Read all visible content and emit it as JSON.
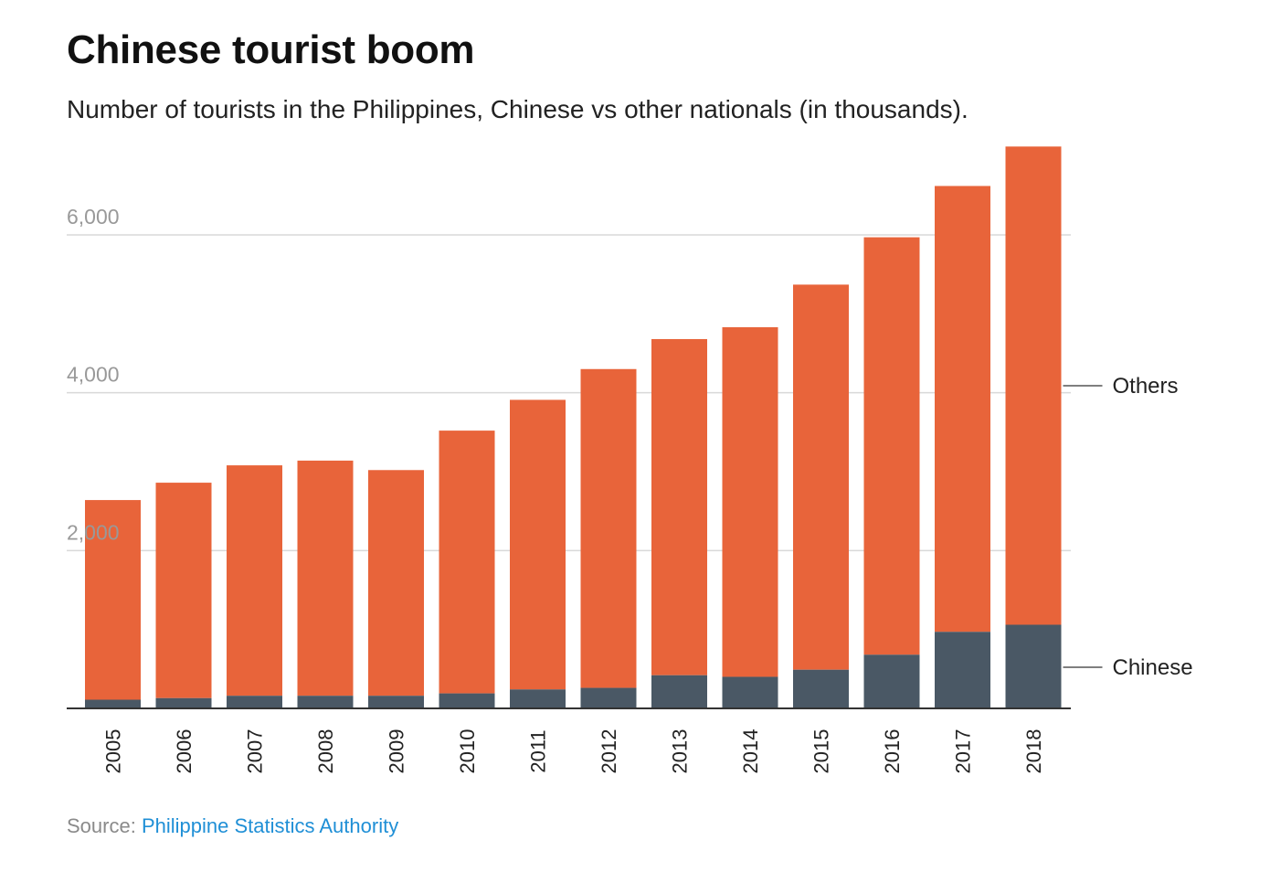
{
  "header": {
    "title": "Chinese tourist boom",
    "subtitle": "Number of tourists in the Philippines, Chinese vs other nationals (in thousands)."
  },
  "source": {
    "prefix": "Source: ",
    "link_text": "Philippine Statistics Authority"
  },
  "colors": {
    "others": "#e8643a",
    "chinese": "#4a5865",
    "grid": "#d9d9d9",
    "axis": "#333333"
  },
  "chart_data": {
    "type": "bar",
    "stacked": true,
    "title": "Chinese tourist boom",
    "subtitle": "Number of tourists in the Philippines, Chinese vs other nationals (in thousands).",
    "categories": [
      "2005",
      "2006",
      "2007",
      "2008",
      "2009",
      "2010",
      "2011",
      "2012",
      "2013",
      "2014",
      "2015",
      "2016",
      "2017",
      "2018"
    ],
    "series": [
      {
        "name": "Chinese",
        "values": [
          110,
          130,
          160,
          160,
          160,
          190,
          240,
          260,
          420,
          400,
          490,
          680,
          970,
          1060
        ]
      },
      {
        "name": "Others",
        "values": [
          2530,
          2730,
          2920,
          2980,
          2860,
          3330,
          3670,
          4040,
          4260,
          4430,
          4880,
          5290,
          5650,
          6060
        ]
      }
    ],
    "ylim": [
      0,
      7200
    ],
    "yticks": [
      2000,
      4000,
      6000
    ],
    "ytick_labels": [
      "2,000",
      "4,000",
      "6,000"
    ],
    "grid": true,
    "legend": "right-side labels"
  }
}
